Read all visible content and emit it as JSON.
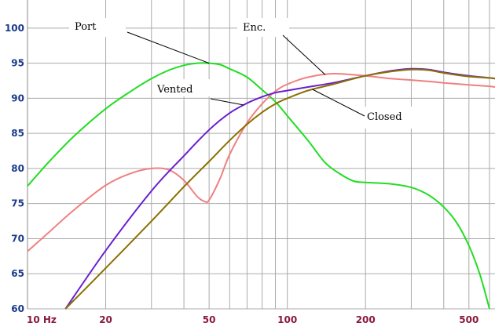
{
  "chart_data": {
    "type": "line",
    "x_scale": "log",
    "xlim": [
      10,
      630
    ],
    "ylim": [
      60,
      104
    ],
    "grid": true,
    "background": "#ffffff",
    "grid_color": "#aaaaaa",
    "y_ticks": [
      60,
      65,
      70,
      75,
      80,
      85,
      90,
      95,
      100
    ],
    "x_ticks": [
      {
        "value": 10,
        "label": "10  Hz"
      },
      {
        "value": 20,
        "label": "20"
      },
      {
        "value": 50,
        "label": "50"
      },
      {
        "value": 100,
        "label": "100"
      },
      {
        "value": 200,
        "label": "200"
      },
      {
        "value": 500,
        "label": "500"
      }
    ],
    "series": [
      {
        "key": "port",
        "color": "#22dd22",
        "x": [
          10,
          12,
          15,
          20,
          25,
          30,
          35,
          40,
          45,
          50,
          55,
          60,
          70,
          80,
          90,
          100,
          120,
          140,
          160,
          180,
          200,
          250,
          300,
          350,
          400,
          450,
          500,
          550,
          600
        ],
        "y": [
          77.5,
          80.8,
          84.5,
          88.5,
          91,
          92.8,
          94,
          94.7,
          95,
          95,
          94.8,
          94.2,
          93,
          91.2,
          89.5,
          87.5,
          84,
          80.8,
          79.2,
          78.2,
          78,
          77.8,
          77.3,
          76.2,
          74.5,
          72.2,
          69,
          65,
          60
        ]
      },
      {
        "key": "enclosure",
        "color": "#f08080",
        "x": [
          10,
          12,
          15,
          20,
          25,
          30,
          35,
          40,
          45,
          48,
          50,
          55,
          60,
          70,
          80,
          90,
          100,
          120,
          150,
          200,
          250,
          300,
          350,
          400,
          500,
          600,
          630
        ],
        "y": [
          68.2,
          70.8,
          74,
          77.6,
          79.3,
          80,
          79.8,
          78.3,
          76,
          75.3,
          75.5,
          78.5,
          82,
          86.5,
          89.2,
          91,
          92,
          93,
          93.5,
          93.2,
          92.8,
          92.6,
          92.4,
          92.2,
          91.9,
          91.7,
          91.6
        ]
      },
      {
        "key": "vented",
        "color": "#6a1fd0",
        "x": [
          14,
          20,
          30,
          40,
          50,
          60,
          70,
          80,
          90,
          100,
          120,
          150,
          200,
          250,
          300,
          350,
          400,
          500,
          600,
          630
        ],
        "y": [
          60,
          68.3,
          76.8,
          81.8,
          85.5,
          87.9,
          89.3,
          90.2,
          90.8,
          91.1,
          91.6,
          92.2,
          93.2,
          93.9,
          94.2,
          94.1,
          93.7,
          93.2,
          92.9,
          92.8
        ]
      },
      {
        "key": "closed",
        "color": "#8a7000",
        "x": [
          14,
          20,
          30,
          40,
          50,
          60,
          70,
          80,
          90,
          100,
          120,
          150,
          200,
          250,
          300,
          350,
          400,
          500,
          600,
          630
        ],
        "y": [
          60,
          65.8,
          72.5,
          77.4,
          81,
          84,
          86.3,
          88,
          89.2,
          90,
          91.1,
          92,
          93.2,
          93.8,
          94.1,
          94,
          93.6,
          93.1,
          92.9,
          92.8
        ]
      }
    ],
    "annotations": [
      {
        "text": "Port",
        "target_series": "port",
        "target_x": 50
      },
      {
        "text": "Enc.",
        "target_series": "enclosure",
        "target_x": 140
      },
      {
        "text": "Vented",
        "target_series": "vented",
        "target_x": 68
      },
      {
        "text": "Closed",
        "target_series": "closed",
        "target_x": 125
      }
    ]
  }
}
